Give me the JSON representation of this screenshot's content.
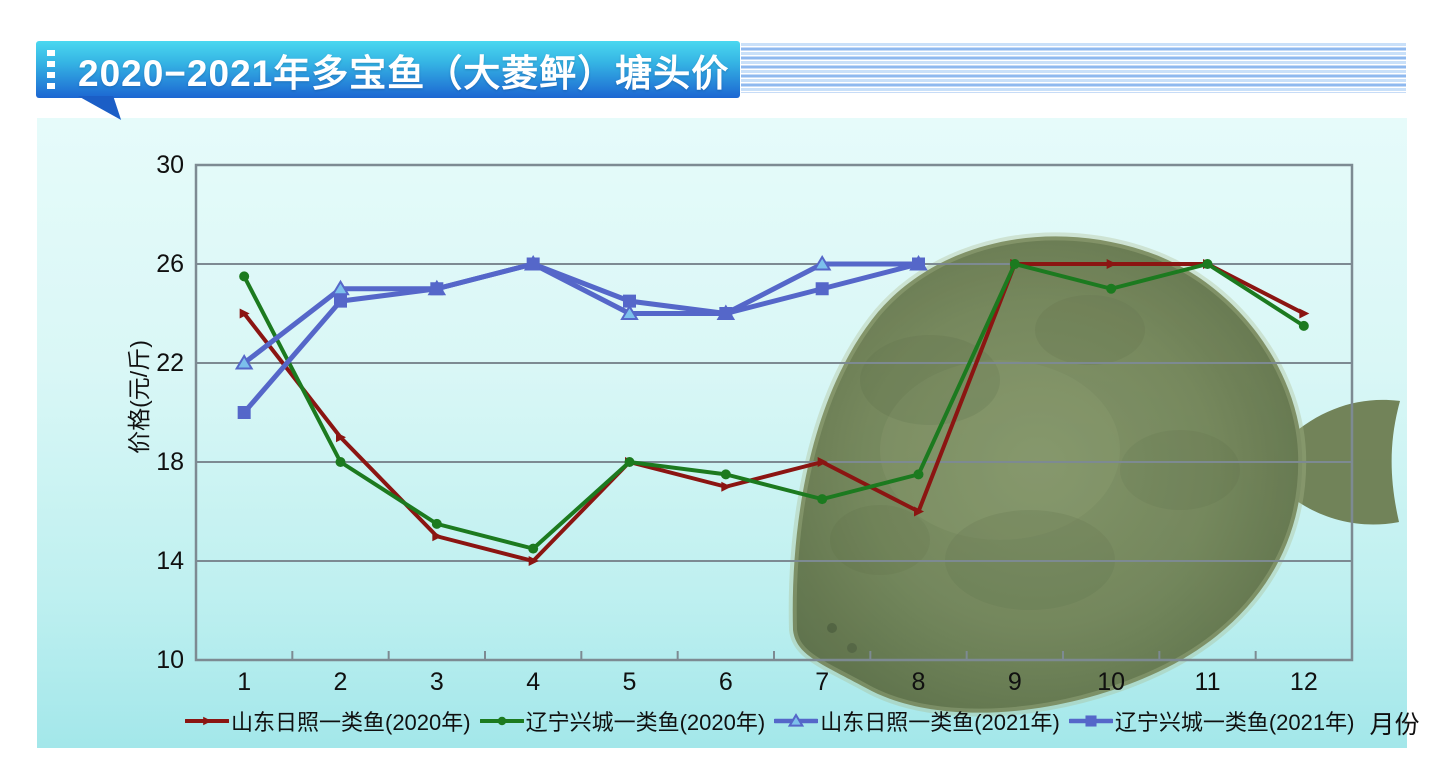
{
  "header": {
    "title": "2020−2021年多宝鱼（大菱鲆）塘头价",
    "bar_color_top": "#4BD8F0",
    "bar_color_bottom": "#1C66D2",
    "stripe_light": "#C9E0F9",
    "stripe_medium": "#8FB9EF"
  },
  "chart_data": {
    "type": "line",
    "title": "2020−2021年多宝鱼（大菱鲆）塘头价",
    "xlabel": "月份",
    "ylabel": "价格(元/斤)",
    "ylim": [
      10,
      30
    ],
    "yticks": [
      10,
      14,
      18,
      22,
      26,
      30
    ],
    "categories": [
      1,
      2,
      3,
      4,
      5,
      6,
      7,
      8,
      9,
      10,
      11,
      12
    ],
    "grid": "horizontal",
    "legend_position": "bottom",
    "series": [
      {
        "name": "山东日照一类鱼(2020年)",
        "color": "#8B1512",
        "marker": "triangle-right",
        "values": [
          24,
          19,
          15,
          14,
          18,
          17,
          18,
          16,
          26,
          26,
          26,
          24
        ]
      },
      {
        "name": "辽宁兴城一类鱼(2020年)",
        "color": "#1C7A1F",
        "marker": "circle",
        "values": [
          25.5,
          18,
          15.5,
          14.5,
          18,
          17.5,
          16.5,
          17.5,
          26,
          25,
          26,
          23.5
        ]
      },
      {
        "name": "山东日照一类鱼(2021年)",
        "color": "#5567C9",
        "marker": "triangle-up",
        "marker_fill": "#7CC0EC",
        "values": [
          22,
          25,
          25,
          26,
          24,
          24,
          26,
          26,
          null,
          null,
          null,
          null
        ]
      },
      {
        "name": "辽宁兴城一类鱼(2021年)",
        "color": "#5567C9",
        "marker": "square",
        "values": [
          20,
          24.5,
          25,
          26,
          24.5,
          24,
          25,
          26,
          null,
          null,
          null,
          null
        ]
      }
    ]
  }
}
